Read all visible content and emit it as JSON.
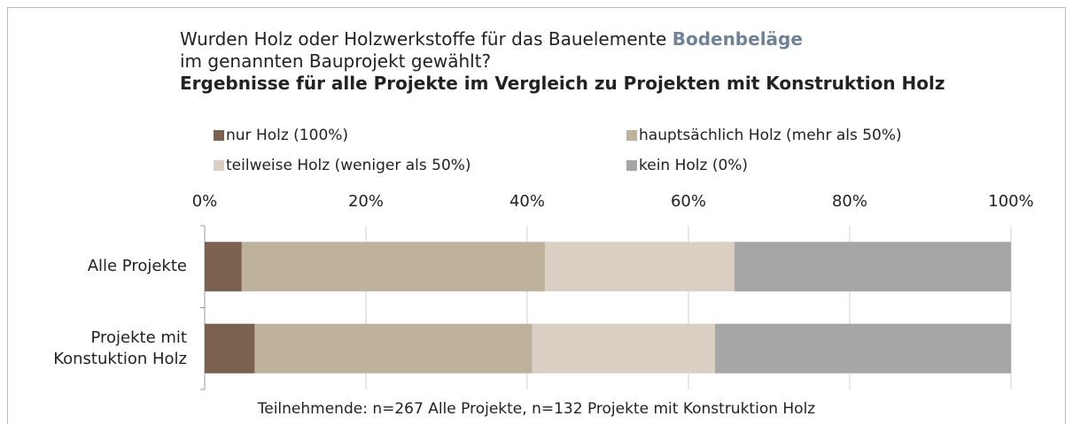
{
  "chart_data": {
    "type": "stacked-barh",
    "title_start": "Wurden Holz oder Holzwerkstoffe für das Bauelemente",
    "title_highlight": "Bodenbeläge",
    "title_end": "im genannten Bauprojekt gewählt?",
    "subtitle": "Ergebnisse für alle Projekte im Vergleich zu Projekten mit Konstruktion Holz",
    "note": "Teilnehmende: n=267 Alle Projekte, n=132 Projekte mit Konstruktion Holz",
    "categories": [
      "Alle Projekte",
      "Projekte mit\nKonstuktion Holz"
    ],
    "series": [
      {
        "name": "nur Holz (100%)",
        "color": "#7b6150",
        "values": [
          4.6,
          6.2
        ]
      },
      {
        "name": "hauptsächlich Holz (mehr als 50%)",
        "color": "#bfb29c",
        "values": [
          37.6,
          34.4
        ]
      },
      {
        "name": "teilweise Holz (weniger als 50%)",
        "color": "#d9cfc2",
        "values": [
          23.5,
          22.7
        ]
      },
      {
        "name": "kein Holz (0%)",
        "color": "#a6a6a6",
        "values": [
          34.3,
          36.7
        ]
      }
    ],
    "xlim": [
      0,
      100
    ],
    "xticks": [
      {
        "value": 0,
        "label": "0%"
      },
      {
        "value": 20,
        "label": "20%"
      },
      {
        "value": 40,
        "label": "40%"
      },
      {
        "value": 60,
        "label": "60%"
      },
      {
        "value": 80,
        "label": "80%"
      },
      {
        "value": 100,
        "label": "100%"
      }
    ],
    "grid": true
  }
}
